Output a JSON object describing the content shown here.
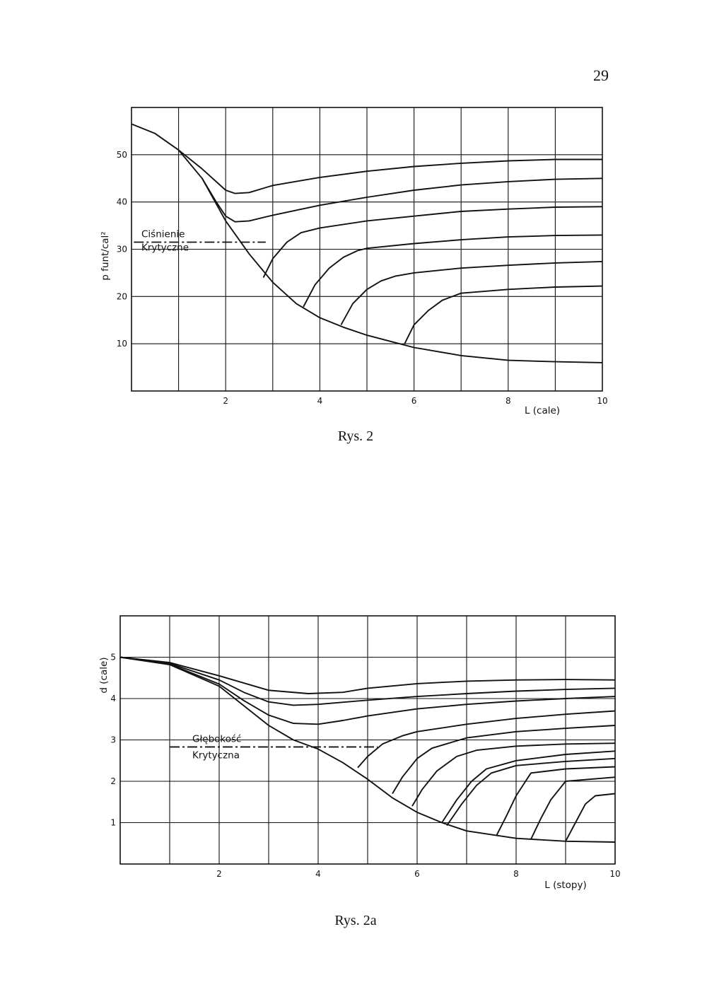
{
  "page": {
    "number": "29"
  },
  "figures": [
    {
      "caption": "Rys. 2"
    },
    {
      "caption": "Rys. 2a"
    }
  ],
  "chart_data": [
    {
      "type": "line",
      "ylabel": "p  funt/cal²",
      "xlabel": "L (cale)",
      "xlim": [
        0,
        10
      ],
      "ylim": [
        0,
        60
      ],
      "xticks": [
        "2",
        "4",
        "6",
        "8",
        "10"
      ],
      "yticks": [
        "10",
        "20",
        "30",
        "40",
        "50"
      ],
      "grid": true,
      "annotation": {
        "line1": "Ciśnienie",
        "line2": "Krytyczne",
        "y": 31.5,
        "x_range": [
          0.05,
          2.85
        ]
      },
      "series": [
        {
          "x": [
            0,
            0.5,
            1,
            1.5,
            2,
            2.5,
            3,
            3.5,
            4,
            4.5,
            5,
            5.5,
            6,
            7,
            8,
            9,
            10
          ],
          "y": [
            56.5,
            54.5,
            51,
            45,
            36,
            29,
            23,
            18.5,
            15.5,
            13.5,
            11.8,
            10.5,
            9.2,
            7.5,
            6.5,
            6.2,
            6.0
          ]
        },
        {
          "x": [
            1,
            1.5,
            2,
            2.2,
            2.5,
            3,
            4,
            5,
            6,
            7,
            8,
            9,
            10
          ],
          "y": [
            51,
            47,
            42.5,
            41.8,
            42,
            43.5,
            45.2,
            46.5,
            47.5,
            48.2,
            48.7,
            49,
            49
          ]
        },
        {
          "x": [
            1.5,
            1.8,
            2,
            2.2,
            2.5,
            3,
            4,
            5,
            6,
            7,
            8,
            9,
            10
          ],
          "y": [
            45,
            40,
            37,
            35.8,
            36,
            37.2,
            39.3,
            41,
            42.5,
            43.6,
            44.3,
            44.8,
            45
          ]
        },
        {
          "x": [
            2.8,
            3,
            3.3,
            3.6,
            4,
            5,
            6,
            7,
            8,
            9,
            10
          ],
          "y": [
            24,
            28,
            31.5,
            33.5,
            34.5,
            36,
            37,
            38,
            38.5,
            38.9,
            39
          ]
        },
        {
          "x": [
            3.65,
            3.9,
            4.2,
            4.5,
            4.8,
            5,
            6,
            7,
            8,
            9,
            10
          ],
          "y": [
            17.8,
            22.5,
            26,
            28.3,
            29.7,
            30.2,
            31.2,
            32,
            32.6,
            32.9,
            33
          ]
        },
        {
          "x": [
            4.45,
            4.7,
            5,
            5.3,
            5.6,
            6,
            7,
            8,
            9,
            10
          ],
          "y": [
            14,
            18.5,
            21.5,
            23.3,
            24.3,
            25,
            26,
            26.6,
            27.1,
            27.4
          ]
        },
        {
          "x": [
            5.8,
            6,
            6.3,
            6.6,
            7,
            8,
            9,
            10
          ],
          "y": [
            10,
            14,
            17,
            19.2,
            20.7,
            21.5,
            22,
            22.2
          ]
        }
      ]
    },
    {
      "type": "line",
      "ylabel": "d (cale)",
      "xlabel": "L (stopy)",
      "xlim": [
        0,
        10
      ],
      "ylim": [
        0,
        6
      ],
      "xticks": [
        "2",
        "4",
        "6",
        "8",
        "10"
      ],
      "yticks": [
        "1",
        "2",
        "3",
        "4",
        "5"
      ],
      "grid": true,
      "annotation": {
        "line1": "Głębokość",
        "line2": "Krytyczna",
        "y": 2.83,
        "x_range": [
          1,
          5.2
        ]
      },
      "series": [
        {
          "x": [
            0,
            1,
            2,
            3,
            3.5,
            4,
            4.5,
            5,
            5.5,
            6,
            6.5,
            7,
            8,
            9,
            10
          ],
          "y": [
            5,
            4.82,
            4.3,
            3.35,
            3,
            2.78,
            2.45,
            2.05,
            1.6,
            1.25,
            1.0,
            0.8,
            0.62,
            0.55,
            0.53
          ]
        },
        {
          "x": [
            0,
            1,
            2,
            3,
            3.8,
            4.5,
            5,
            6,
            7,
            8,
            9,
            10
          ],
          "y": [
            5,
            4.87,
            4.55,
            4.2,
            4.12,
            4.15,
            4.25,
            4.36,
            4.42,
            4.45,
            4.46,
            4.45
          ]
        },
        {
          "x": [
            0,
            1,
            2,
            2.5,
            3,
            3.5,
            4,
            5,
            6,
            7,
            8,
            9,
            10
          ],
          "y": [
            5,
            4.85,
            4.45,
            4.15,
            3.92,
            3.84,
            3.86,
            3.96,
            4.05,
            4.12,
            4.18,
            4.22,
            4.25
          ]
        },
        {
          "x": [
            0,
            1,
            2,
            2.5,
            3,
            3.5,
            4,
            4.5,
            5,
            6,
            7,
            8,
            9,
            10
          ],
          "y": [
            5,
            4.83,
            4.35,
            3.95,
            3.6,
            3.4,
            3.38,
            3.47,
            3.58,
            3.75,
            3.86,
            3.94,
            4.0,
            4.05
          ]
        },
        {
          "x": [
            4.8,
            5,
            5.3,
            5.7,
            6,
            7,
            8,
            9,
            10
          ],
          "y": [
            2.33,
            2.6,
            2.9,
            3.1,
            3.2,
            3.38,
            3.52,
            3.62,
            3.7
          ]
        },
        {
          "x": [
            5.5,
            5.7,
            6,
            6.3,
            7,
            8,
            9,
            10
          ],
          "y": [
            1.7,
            2.1,
            2.55,
            2.8,
            3.05,
            3.2,
            3.28,
            3.35
          ]
        },
        {
          "x": [
            5.9,
            6.1,
            6.4,
            6.8,
            7.2,
            8,
            9,
            10
          ],
          "y": [
            1.4,
            1.8,
            2.25,
            2.6,
            2.75,
            2.85,
            2.9,
            2.92
          ]
        },
        {
          "x": [
            6.5,
            6.8,
            7.1,
            7.4,
            8,
            9,
            10
          ],
          "y": [
            1.0,
            1.55,
            2.0,
            2.3,
            2.5,
            2.65,
            2.73
          ]
        },
        {
          "x": [
            6.6,
            6.9,
            7.2,
            7.5,
            8,
            9,
            10
          ],
          "y": [
            0.93,
            1.45,
            1.9,
            2.2,
            2.38,
            2.48,
            2.55
          ]
        },
        {
          "x": [
            7.6,
            7.8,
            8,
            8.3,
            9,
            10
          ],
          "y": [
            0.68,
            1.15,
            1.65,
            2.2,
            2.3,
            2.35
          ]
        },
        {
          "x": [
            8.3,
            8.5,
            8.7,
            9,
            10
          ],
          "y": [
            0.6,
            1.1,
            1.55,
            2.0,
            2.1
          ]
        },
        {
          "x": [
            9.0,
            9.2,
            9.4,
            9.6,
            10
          ],
          "y": [
            0.55,
            1.0,
            1.45,
            1.65,
            1.7
          ]
        }
      ]
    }
  ]
}
